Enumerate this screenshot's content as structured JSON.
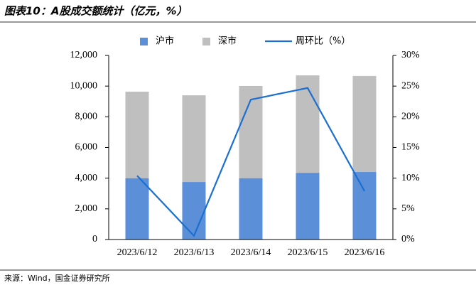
{
  "chart_data": {
    "type": "bar",
    "title": "图表10：A股成交额统计（亿元，%）",
    "source": "来源：Wind，国金证券研究所",
    "categories": [
      "2023/6/12",
      "2023/6/13",
      "2023/6/14",
      "2023/6/15",
      "2023/6/16"
    ],
    "stacked": true,
    "series": [
      {
        "name": "沪市",
        "color": "#5b8fd7",
        "type": "bar",
        "values": [
          4000,
          3750,
          4000,
          4350,
          4400
        ]
      },
      {
        "name": "深市",
        "color": "#bfbfbf",
        "type": "bar",
        "values": [
          5640,
          5650,
          6010,
          6350,
          6260
        ]
      },
      {
        "name": "周环比（%）",
        "color": "#1a6fd0",
        "type": "line",
        "axis": "y2",
        "values": [
          10.4,
          0.6,
          22.8,
          24.7,
          7.9
        ]
      }
    ],
    "ylim": [
      0,
      12000
    ],
    "yticks": [
      0,
      {
        "value": 2000,
        "label": "2,000"
      },
      {
        "value": 4000,
        "label": "4,000"
      },
      {
        "value": 6000,
        "label": "6,000"
      },
      {
        "value": 8000,
        "label": "8,000"
      },
      {
        "value": 10000,
        "label": "10,000"
      },
      {
        "value": 12000,
        "label": "12,000"
      }
    ],
    "y2lim": [
      0,
      30
    ],
    "y2ticks": [
      {
        "value": 0,
        "label": "0%"
      },
      {
        "value": 5,
        "label": "5%"
      },
      {
        "value": 10,
        "label": "10%"
      },
      {
        "value": 15,
        "label": "15%"
      },
      {
        "value": 20,
        "label": "20%"
      },
      {
        "value": 25,
        "label": "25%"
      },
      {
        "value": 30,
        "label": "30%"
      }
    ],
    "legend": "top",
    "grid": false
  }
}
